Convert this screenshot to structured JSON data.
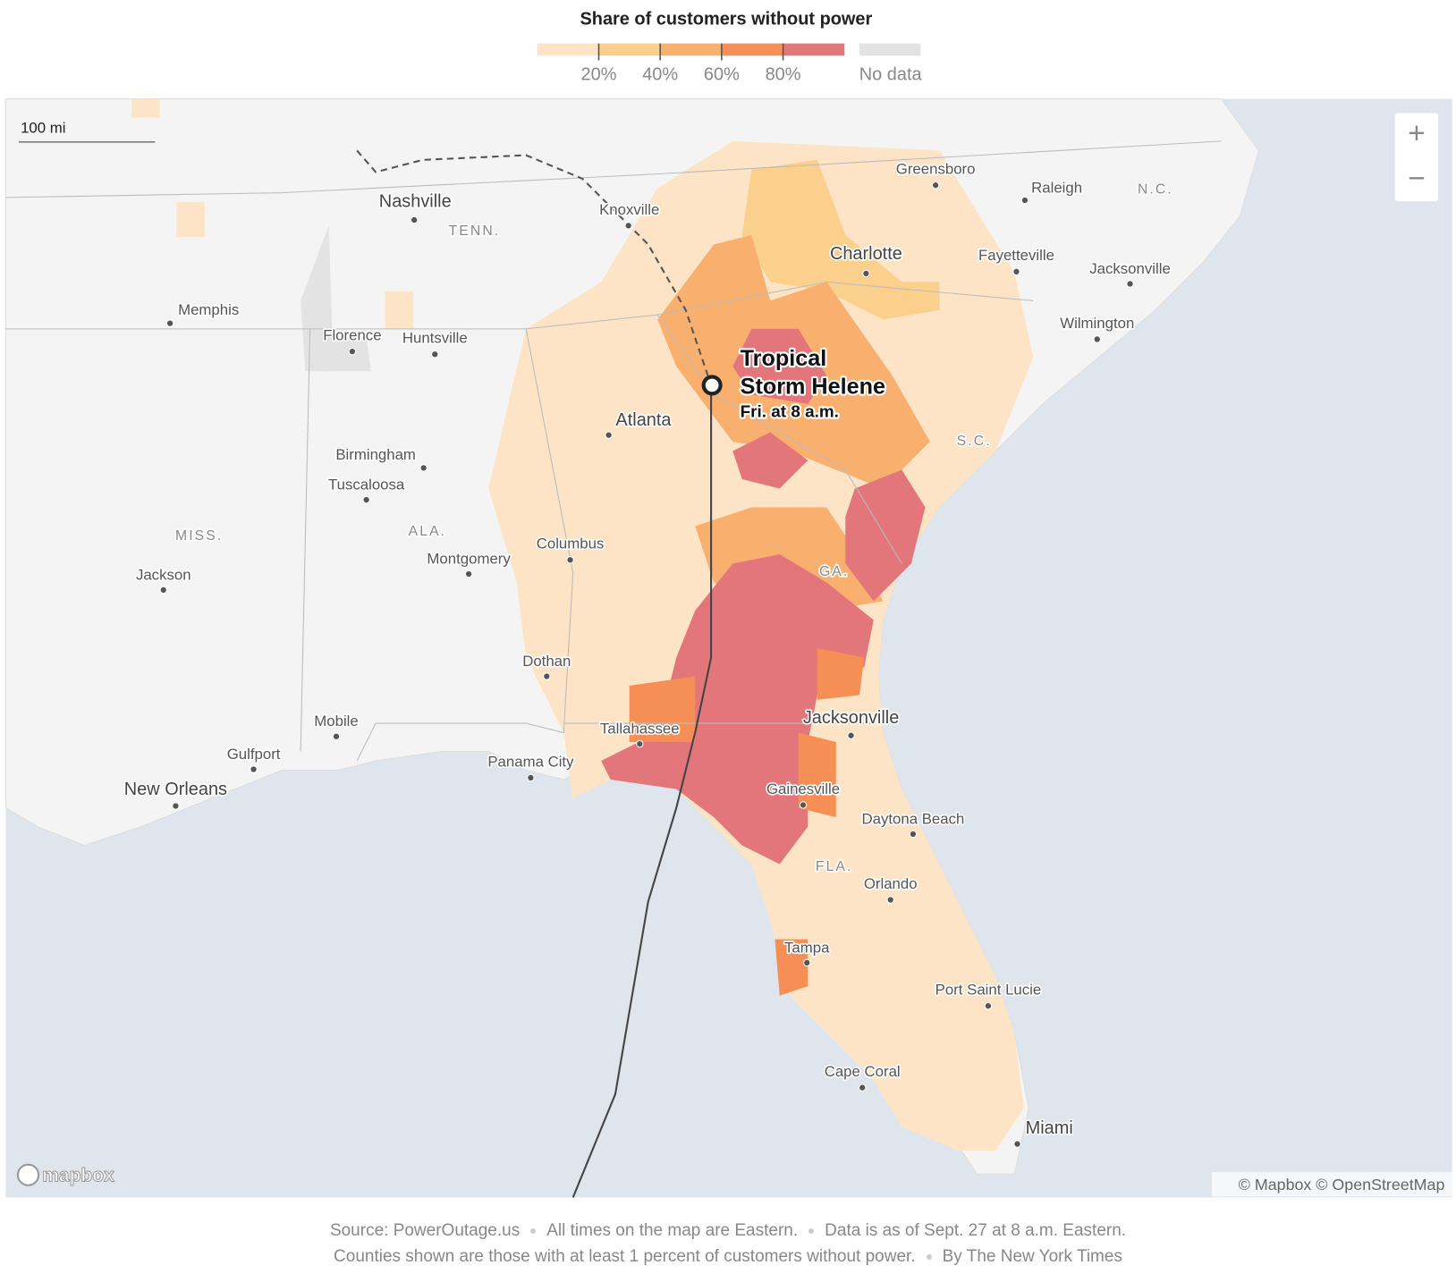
{
  "legend": {
    "title": "Share of customers without power",
    "range": [
      0,
      100
    ],
    "colors": [
      "#fde4c6",
      "#fbd08c",
      "#f9b06e",
      "#f58f56",
      "#e3767b"
    ],
    "ticks": [
      {
        "value": 20,
        "label": "20%"
      },
      {
        "value": 40,
        "label": "40%"
      },
      {
        "value": 60,
        "label": "60%"
      },
      {
        "value": 80,
        "label": "80%"
      }
    ],
    "no_data": {
      "label": "No data",
      "color": "#e3e3e3"
    }
  },
  "scale_bar": "100 mi",
  "controls": {
    "zoom_in": "+",
    "zoom_out": "−"
  },
  "storm": {
    "name_lines": [
      "Tropical",
      "Storm Helene"
    ],
    "time": "Fri. at 8 a.m."
  },
  "cities": [
    "Nashville",
    "Knoxville",
    "Greensboro",
    "Raleigh",
    "Charlotte",
    "Fayetteville",
    "Jacksonville",
    "Memphis",
    "Florence",
    "Huntsville",
    "Wilmington",
    "Atlanta",
    "Birmingham",
    "Tuscaloosa",
    "Columbus",
    "Montgomery",
    "Jackson",
    "Dothan",
    "Jacksonville",
    "Tallahassee",
    "Mobile",
    "Gulfport",
    "Panama City",
    "New Orleans",
    "Gainesville",
    "Daytona Beach",
    "Orlando",
    "Tampa",
    "Port Saint Lucie",
    "Cape Coral",
    "Miami"
  ],
  "states": [
    "TENN.",
    "N.C.",
    "S.C.",
    "MISS.",
    "ALA.",
    "GA.",
    "FLA."
  ],
  "attribution": {
    "logo": "mapbox",
    "credit": "© Mapbox © OpenStreetMap"
  },
  "footer": {
    "lines": [
      [
        "Source: PowerOutage.us",
        "All times on the map are Eastern.",
        "Data is as of Sept. 27 at 8 a.m. Eastern."
      ],
      [
        "Counties shown are those with at least 1 percent of customers without power.",
        "By The New York Times"
      ]
    ]
  }
}
